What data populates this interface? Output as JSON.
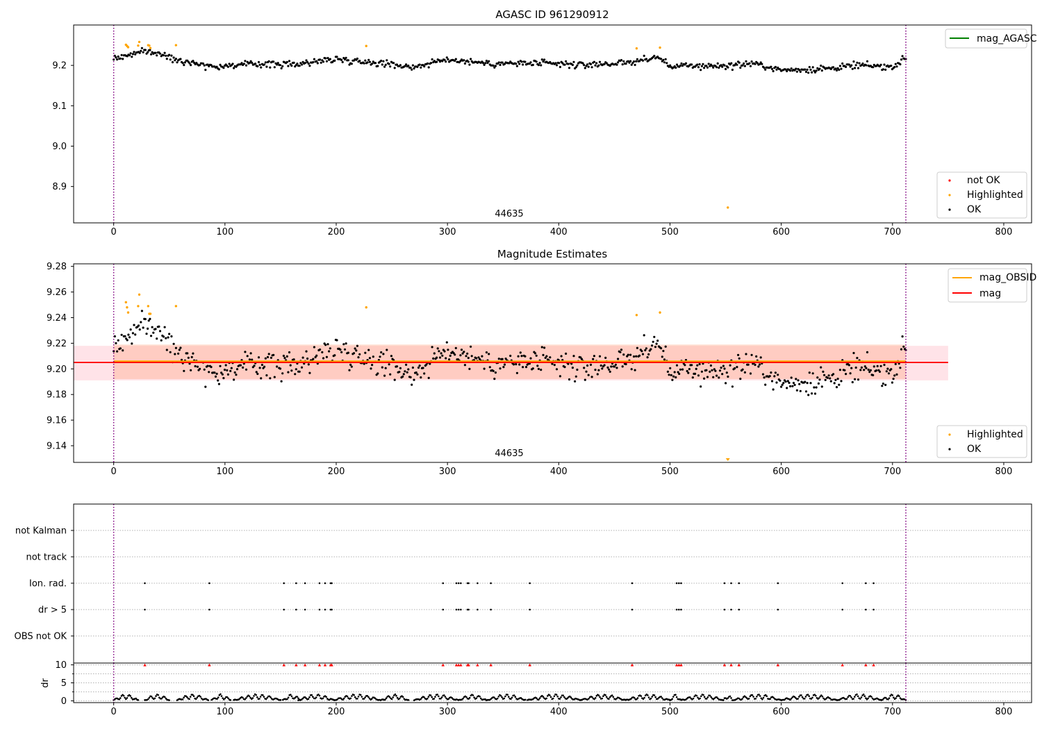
{
  "figure": {
    "ok_color": "#000000",
    "highlight_color": "#ffa500",
    "not_ok_color": "#ff0000",
    "band_color": "#ffc0cb",
    "vline_color": "#800080",
    "x_range": [
      -36,
      825
    ],
    "x_ticks": [
      "0",
      "100",
      "200",
      "300",
      "400",
      "500",
      "600",
      "700",
      "800"
    ],
    "obs_start": 0,
    "obs_end": 712,
    "obsid_label": "44635"
  },
  "chart_data": [
    {
      "type": "scatter",
      "title": "AGASC ID 961290912",
      "xlabel": "",
      "ylabel": "",
      "ylim": [
        8.81,
        9.3
      ],
      "y_ticks": [
        "8.9",
        "9.0",
        "9.1",
        "9.2"
      ],
      "grid": false,
      "legend_top": [
        "mag_AGASC"
      ],
      "legend_bottom": [
        "not OK",
        "Highlighted",
        "OK"
      ],
      "legend_placement": [
        "top-right",
        "bottom-right"
      ],
      "series": [
        {
          "name": "OK",
          "style": "ok",
          "trend": [
            [
              0,
              9.217
            ],
            [
              30,
              9.236
            ],
            [
              60,
              9.213
            ],
            [
              90,
              9.197
            ],
            [
              130,
              9.204
            ],
            [
              160,
              9.202
            ],
            [
              200,
              9.216
            ],
            [
              240,
              9.206
            ],
            [
              270,
              9.196
            ],
            [
              300,
              9.215
            ],
            [
              340,
              9.204
            ],
            [
              380,
              9.205
            ],
            [
              420,
              9.201
            ],
            [
              460,
              9.206
            ],
            [
              490,
              9.22
            ],
            [
              500,
              9.198
            ],
            [
              550,
              9.199
            ],
            [
              575,
              9.205
            ],
            [
              600,
              9.188
            ],
            [
              640,
              9.192
            ],
            [
              670,
              9.2
            ],
            [
              700,
              9.196
            ],
            [
              712,
              9.22
            ]
          ],
          "noise": 0.008,
          "count": 700
        },
        {
          "name": "Highlighted",
          "style": "highlight",
          "x": [
            11,
            12,
            13,
            22,
            23,
            31,
            32,
            33,
            56,
            227,
            470,
            491,
            552
          ],
          "values": [
            9.251,
            9.248,
            9.245,
            9.249,
            9.258,
            9.25,
            9.249,
            9.243,
            9.25,
            9.248,
            9.242,
            9.244,
            8.848
          ]
        }
      ]
    },
    {
      "type": "scatter",
      "title": "Magnitude Estimates",
      "xlabel": "",
      "ylabel": "",
      "ylim": [
        9.127,
        9.282
      ],
      "y_ticks": [
        "9.14",
        "9.16",
        "9.18",
        "9.20",
        "9.22",
        "9.24",
        "9.26",
        "9.28"
      ],
      "grid": false,
      "legend_top": [
        "mag_OBSID",
        "mag"
      ],
      "legend_bottom": [
        "Highlighted",
        "OK"
      ],
      "legend_placement": [
        "top-right",
        "bottom-right"
      ],
      "mag": 9.205,
      "mag_obsid": 9.206,
      "band": {
        "lo": 9.191,
        "hi": 9.218,
        "x0": -36,
        "x1": 750
      },
      "band_obsid": {
        "lo": 9.192,
        "hi": 9.219,
        "x0": 0,
        "x1": 712
      },
      "series": [
        {
          "name": "OK",
          "style": "ok",
          "trend": [
            [
              0,
              9.217
            ],
            [
              30,
              9.236
            ],
            [
              60,
              9.213
            ],
            [
              90,
              9.197
            ],
            [
              130,
              9.204
            ],
            [
              160,
              9.202
            ],
            [
              200,
              9.216
            ],
            [
              240,
              9.206
            ],
            [
              270,
              9.196
            ],
            [
              300,
              9.215
            ],
            [
              340,
              9.204
            ],
            [
              380,
              9.205
            ],
            [
              420,
              9.201
            ],
            [
              460,
              9.206
            ],
            [
              490,
              9.22
            ],
            [
              500,
              9.198
            ],
            [
              550,
              9.199
            ],
            [
              575,
              9.205
            ],
            [
              600,
              9.188
            ],
            [
              640,
              9.192
            ],
            [
              670,
              9.2
            ],
            [
              700,
              9.196
            ],
            [
              712,
              9.22
            ]
          ],
          "noise": 0.01,
          "count": 700
        },
        {
          "name": "Highlighted",
          "style": "highlight",
          "x": [
            11,
            12,
            13,
            22,
            23,
            31,
            32,
            33,
            56,
            227,
            470,
            491
          ],
          "values": [
            9.252,
            9.248,
            9.244,
            9.249,
            9.258,
            9.249,
            9.243,
            9.243,
            9.249,
            9.248,
            9.242,
            9.244
          ]
        },
        {
          "name": "Highlighted (off-axis)",
          "style": "highlight-marker",
          "x": [
            552
          ],
          "values": [
            9.128
          ]
        }
      ]
    },
    {
      "type": "scatter",
      "title": "",
      "xlabel": "",
      "ylabel": "",
      "categories": [
        "not Kalman",
        "not track",
        "Ion. rad.",
        "dr > 5",
        "OBS not OK"
      ],
      "grid": true,
      "flag_x": [
        28,
        86,
        153,
        164,
        172,
        185,
        190,
        195,
        196,
        296,
        308,
        310,
        312,
        318,
        319,
        327,
        339,
        374,
        466,
        506,
        508,
        510,
        549,
        555,
        562,
        597,
        655,
        676,
        683
      ],
      "flag_rows": [
        "Ion. rad.",
        "dr > 5"
      ]
    },
    {
      "type": "scatter",
      "title": "",
      "xlabel": "",
      "ylabel": "dr",
      "ylim": [
        -0.5,
        10.5
      ],
      "y_ticks": [
        "0",
        "5",
        "10"
      ],
      "grid": true,
      "cap": 10,
      "capped_x": [
        28,
        86,
        153,
        164,
        172,
        185,
        190,
        195,
        196,
        296,
        308,
        310,
        312,
        318,
        319,
        327,
        339,
        374,
        466,
        506,
        508,
        510,
        549,
        555,
        562,
        597,
        655,
        676,
        683
      ],
      "segments": [
        [
          0,
          22
        ],
        [
          28,
          50
        ],
        [
          57,
          85
        ],
        [
          88,
          105
        ],
        [
          108,
          150
        ],
        [
          152,
          168
        ],
        [
          166,
          198
        ],
        [
          198,
          240
        ],
        [
          240,
          265
        ],
        [
          270,
          310
        ],
        [
          310,
          335
        ],
        [
          335,
          370
        ],
        [
          372,
          420
        ],
        [
          420,
          460
        ],
        [
          460,
          500
        ],
        [
          500,
          510
        ],
        [
          510,
          548
        ],
        [
          548,
          556
        ],
        [
          557,
          600
        ],
        [
          600,
          650
        ],
        [
          650,
          690
        ],
        [
          690,
          712
        ]
      ]
    }
  ]
}
